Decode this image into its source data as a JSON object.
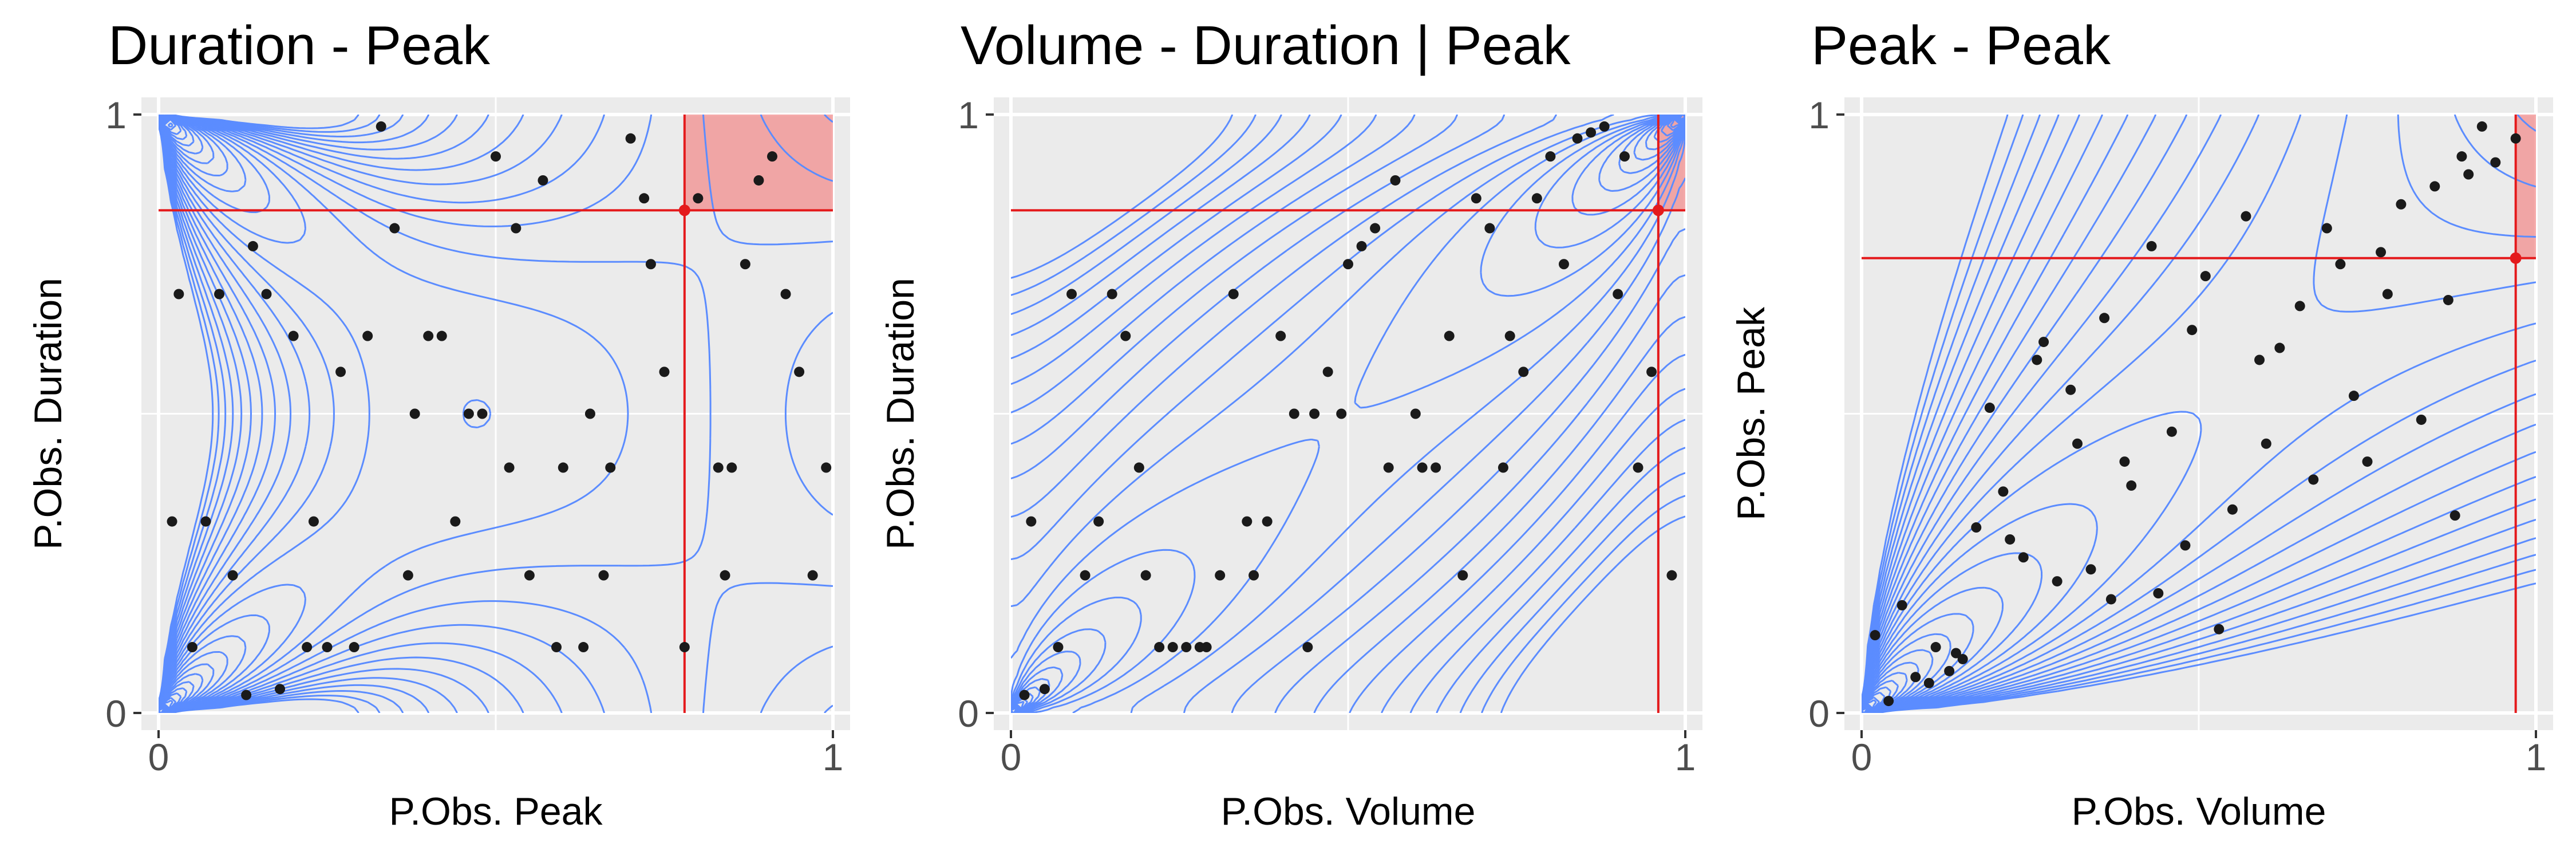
{
  "colors": {
    "panel_bg": "#EBEBEB",
    "grid": "#FFFFFF",
    "contour": "#5B8CFF",
    "point": "#1A1A1A",
    "threshold_line": "#E41A1C",
    "exceedance_fill": "#F28E8E",
    "text": "#000000",
    "tick_text": "#4D4D4D"
  },
  "chart_data": [
    {
      "type": "scatter",
      "title": "Duration - Peak",
      "xlabel": "P.Obs. Peak",
      "ylabel": "P.Obs. Duration",
      "xlim": [
        0,
        1
      ],
      "ylim": [
        0,
        1
      ],
      "x_ticks": [
        "0",
        "1"
      ],
      "y_ticks": [
        "0",
        "1"
      ],
      "grid": true,
      "contour_kind": "Clayton-rotated",
      "threshold": {
        "x": 0.78,
        "y": 0.84,
        "region": "upper-right"
      },
      "points": [
        [
          0.02,
          0.32
        ],
        [
          0.03,
          0.7
        ],
        [
          0.05,
          0.11
        ],
        [
          0.07,
          0.32
        ],
        [
          0.09,
          0.7
        ],
        [
          0.11,
          0.23
        ],
        [
          0.13,
          0.03
        ],
        [
          0.14,
          0.78
        ],
        [
          0.16,
          0.7
        ],
        [
          0.18,
          0.04
        ],
        [
          0.2,
          0.63
        ],
        [
          0.22,
          0.11
        ],
        [
          0.23,
          0.32
        ],
        [
          0.25,
          0.11
        ],
        [
          0.27,
          0.57
        ],
        [
          0.29,
          0.11
        ],
        [
          0.31,
          0.63
        ],
        [
          0.33,
          0.98
        ],
        [
          0.35,
          0.81
        ],
        [
          0.37,
          0.23
        ],
        [
          0.38,
          0.5
        ],
        [
          0.4,
          0.63
        ],
        [
          0.42,
          0.63
        ],
        [
          0.44,
          0.32
        ],
        [
          0.46,
          0.5
        ],
        [
          0.48,
          0.5
        ],
        [
          0.5,
          0.93
        ],
        [
          0.52,
          0.41
        ],
        [
          0.53,
          0.81
        ],
        [
          0.55,
          0.23
        ],
        [
          0.57,
          0.89
        ],
        [
          0.59,
          0.11
        ],
        [
          0.6,
          0.41
        ],
        [
          0.63,
          0.11
        ],
        [
          0.64,
          0.5
        ],
        [
          0.66,
          0.23
        ],
        [
          0.67,
          0.41
        ],
        [
          0.7,
          0.96
        ],
        [
          0.72,
          0.86
        ],
        [
          0.73,
          0.75
        ],
        [
          0.75,
          0.57
        ],
        [
          0.78,
          0.84
        ],
        [
          0.78,
          0.11
        ],
        [
          0.8,
          0.86
        ],
        [
          0.83,
          0.41
        ],
        [
          0.84,
          0.23
        ],
        [
          0.85,
          0.41
        ],
        [
          0.87,
          0.75
        ],
        [
          0.89,
          0.89
        ],
        [
          0.91,
          0.93
        ],
        [
          0.93,
          0.7
        ],
        [
          0.95,
          0.57
        ],
        [
          0.97,
          0.23
        ],
        [
          0.99,
          0.41
        ]
      ]
    },
    {
      "type": "scatter",
      "title": "Volume - Duration | Peak",
      "xlabel": "P.Obs. Volume",
      "ylabel": "P.Obs. Duration",
      "xlim": [
        0,
        1
      ],
      "ylim": [
        0,
        1
      ],
      "x_ticks": [
        "0",
        "1"
      ],
      "y_ticks": [
        "0",
        "1"
      ],
      "grid": true,
      "contour_kind": "Gumbel",
      "threshold": {
        "x": 0.96,
        "y": 0.84,
        "region": "upper-right"
      },
      "points": [
        [
          0.02,
          0.03
        ],
        [
          0.03,
          0.32
        ],
        [
          0.05,
          0.04
        ],
        [
          0.07,
          0.11
        ],
        [
          0.09,
          0.7
        ],
        [
          0.11,
          0.23
        ],
        [
          0.13,
          0.32
        ],
        [
          0.15,
          0.7
        ],
        [
          0.17,
          0.63
        ],
        [
          0.19,
          0.41
        ],
        [
          0.2,
          0.23
        ],
        [
          0.22,
          0.11
        ],
        [
          0.24,
          0.11
        ],
        [
          0.26,
          0.11
        ],
        [
          0.28,
          0.11
        ],
        [
          0.29,
          0.11
        ],
        [
          0.31,
          0.23
        ],
        [
          0.33,
          0.7
        ],
        [
          0.35,
          0.32
        ],
        [
          0.36,
          0.23
        ],
        [
          0.38,
          0.32
        ],
        [
          0.4,
          0.63
        ],
        [
          0.42,
          0.5
        ],
        [
          0.44,
          0.11
        ],
        [
          0.45,
          0.5
        ],
        [
          0.47,
          0.57
        ],
        [
          0.49,
          0.5
        ],
        [
          0.5,
          0.75
        ],
        [
          0.52,
          0.78
        ],
        [
          0.54,
          0.81
        ],
        [
          0.56,
          0.41
        ],
        [
          0.57,
          0.89
        ],
        [
          0.6,
          0.5
        ],
        [
          0.61,
          0.41
        ],
        [
          0.63,
          0.41
        ],
        [
          0.65,
          0.63
        ],
        [
          0.67,
          0.23
        ],
        [
          0.69,
          0.86
        ],
        [
          0.71,
          0.81
        ],
        [
          0.73,
          0.41
        ],
        [
          0.74,
          0.63
        ],
        [
          0.76,
          0.57
        ],
        [
          0.78,
          0.86
        ],
        [
          0.8,
          0.93
        ],
        [
          0.82,
          0.75
        ],
        [
          0.84,
          0.96
        ],
        [
          0.86,
          0.97
        ],
        [
          0.88,
          0.98
        ],
        [
          0.9,
          0.7
        ],
        [
          0.91,
          0.93
        ],
        [
          0.93,
          0.41
        ],
        [
          0.95,
          0.57
        ],
        [
          0.96,
          0.84
        ],
        [
          0.98,
          0.23
        ]
      ]
    },
    {
      "type": "scatter",
      "title": "Peak - Peak",
      "xlabel": "P.Obs. Volume",
      "ylabel": "P.Obs. Peak",
      "xlim": [
        0,
        1
      ],
      "ylim": [
        0,
        1
      ],
      "x_ticks": [
        "0",
        "1"
      ],
      "y_ticks": [
        "0",
        "1"
      ],
      "grid": true,
      "contour_kind": "Clayton",
      "threshold": {
        "x": 0.97,
        "y": 0.76,
        "region": "upper-right"
      },
      "points": [
        [
          0.02,
          0.13
        ],
        [
          0.04,
          0.02
        ],
        [
          0.06,
          0.18
        ],
        [
          0.08,
          0.06
        ],
        [
          0.1,
          0.05
        ],
        [
          0.11,
          0.11
        ],
        [
          0.13,
          0.07
        ],
        [
          0.14,
          0.1
        ],
        [
          0.15,
          0.09
        ],
        [
          0.17,
          0.31
        ],
        [
          0.19,
          0.51
        ],
        [
          0.21,
          0.37
        ],
        [
          0.22,
          0.29
        ],
        [
          0.24,
          0.26
        ],
        [
          0.26,
          0.59
        ],
        [
          0.27,
          0.62
        ],
        [
          0.29,
          0.22
        ],
        [
          0.31,
          0.54
        ],
        [
          0.32,
          0.45
        ],
        [
          0.34,
          0.24
        ],
        [
          0.36,
          0.66
        ],
        [
          0.37,
          0.19
        ],
        [
          0.39,
          0.42
        ],
        [
          0.4,
          0.38
        ],
        [
          0.43,
          0.78
        ],
        [
          0.44,
          0.2
        ],
        [
          0.46,
          0.47
        ],
        [
          0.48,
          0.28
        ],
        [
          0.49,
          0.64
        ],
        [
          0.51,
          0.73
        ],
        [
          0.53,
          0.14
        ],
        [
          0.55,
          0.34
        ],
        [
          0.57,
          0.83
        ],
        [
          0.59,
          0.59
        ],
        [
          0.6,
          0.45
        ],
        [
          0.62,
          0.61
        ],
        [
          0.65,
          0.68
        ],
        [
          0.67,
          0.39
        ],
        [
          0.69,
          0.81
        ],
        [
          0.71,
          0.75
        ],
        [
          0.73,
          0.53
        ],
        [
          0.75,
          0.42
        ],
        [
          0.77,
          0.77
        ],
        [
          0.78,
          0.7
        ],
        [
          0.8,
          0.85
        ],
        [
          0.83,
          0.49
        ],
        [
          0.85,
          0.88
        ],
        [
          0.87,
          0.69
        ],
        [
          0.88,
          0.33
        ],
        [
          0.89,
          0.93
        ],
        [
          0.9,
          0.9
        ],
        [
          0.92,
          0.98
        ],
        [
          0.94,
          0.92
        ],
        [
          0.97,
          0.96
        ]
      ]
    }
  ]
}
